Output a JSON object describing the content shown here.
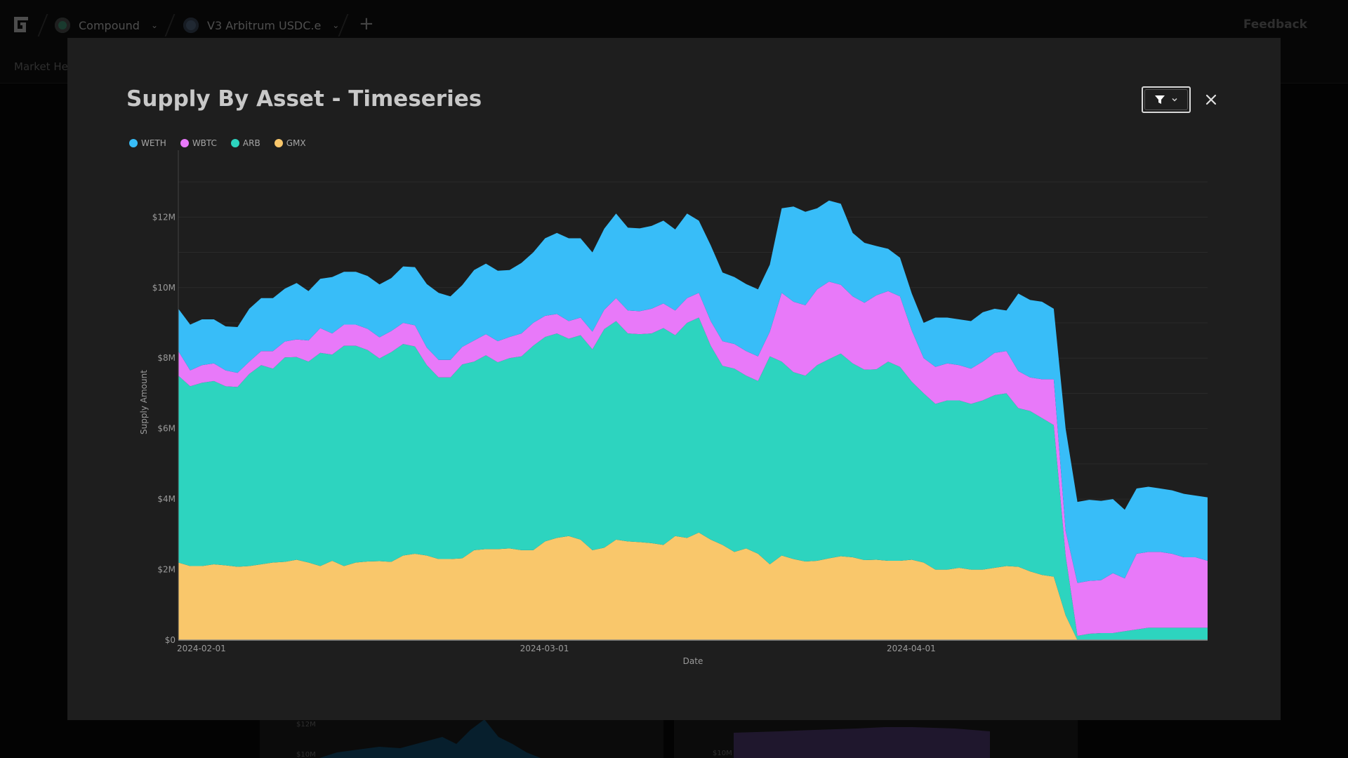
{
  "topnav": {
    "protocol": "Compound",
    "market": "V3 Arbitrum USDC.e",
    "add_symbol": "+",
    "feedback": "Feedback"
  },
  "tabs": {
    "first": "Market Hea"
  },
  "modal": {
    "title": "Supply By Asset - Timeseries"
  },
  "background_cards": {
    "card1_ticks": [
      "$12M",
      "$10M"
    ],
    "card2_ticks": [
      "$10M"
    ]
  },
  "colors": {
    "WETH": "#38bdf8",
    "WBTC": "#e879f9",
    "ARB": "#2dd4bf",
    "GMX": "#f9c76b"
  },
  "chart_data": {
    "type": "area",
    "stacked": true,
    "title": "",
    "xlabel": "Date",
    "ylabel": "Supply Amount",
    "ylim": [
      0,
      13500000
    ],
    "y_ticks": [
      0,
      2000000,
      4000000,
      6000000,
      8000000,
      10000000,
      12000000
    ],
    "y_tick_labels": [
      "$0",
      "$2M",
      "$4M",
      "$6M",
      "$8M",
      "$10M",
      "$12M"
    ],
    "x_start": "2024-02-01",
    "x_end": "2024-04-28",
    "x_ticks": [
      "2024-02-01",
      "2024-03-01",
      "2024-04-01"
    ],
    "grid": true,
    "legend_position": "top-left",
    "x": [
      "2024-02-01",
      "2024-02-02",
      "2024-02-03",
      "2024-02-04",
      "2024-02-05",
      "2024-02-06",
      "2024-02-07",
      "2024-02-08",
      "2024-02-09",
      "2024-02-10",
      "2024-02-11",
      "2024-02-12",
      "2024-02-13",
      "2024-02-14",
      "2024-02-15",
      "2024-02-16",
      "2024-02-17",
      "2024-02-18",
      "2024-02-19",
      "2024-02-20",
      "2024-02-21",
      "2024-02-22",
      "2024-02-23",
      "2024-02-24",
      "2024-02-25",
      "2024-02-26",
      "2024-02-27",
      "2024-02-28",
      "2024-02-29",
      "2024-03-01",
      "2024-03-02",
      "2024-03-03",
      "2024-03-04",
      "2024-03-05",
      "2024-03-06",
      "2024-03-07",
      "2024-03-08",
      "2024-03-09",
      "2024-03-10",
      "2024-03-11",
      "2024-03-12",
      "2024-03-13",
      "2024-03-14",
      "2024-03-15",
      "2024-03-16",
      "2024-03-17",
      "2024-03-18",
      "2024-03-19",
      "2024-03-20",
      "2024-03-21",
      "2024-03-22",
      "2024-03-23",
      "2024-03-24",
      "2024-03-25",
      "2024-03-26",
      "2024-03-27",
      "2024-03-28",
      "2024-03-29",
      "2024-03-30",
      "2024-03-31",
      "2024-04-01",
      "2024-04-02",
      "2024-04-03",
      "2024-04-04",
      "2024-04-05",
      "2024-04-06",
      "2024-04-07",
      "2024-04-08",
      "2024-04-09",
      "2024-04-10",
      "2024-04-11",
      "2024-04-12",
      "2024-04-13",
      "2024-04-14",
      "2024-04-15",
      "2024-04-16",
      "2024-04-17",
      "2024-04-18",
      "2024-04-19",
      "2024-04-20",
      "2024-04-21",
      "2024-04-22",
      "2024-04-23",
      "2024-04-24",
      "2024-04-25",
      "2024-04-26",
      "2024-04-27",
      "2024-04-28"
    ],
    "series": [
      {
        "name": "GMX",
        "values": [
          2200000,
          2100000,
          2100000,
          2150000,
          2120000,
          2080000,
          2100000,
          2150000,
          2200000,
          2220000,
          2280000,
          2200000,
          2100000,
          2250000,
          2100000,
          2200000,
          2230000,
          2240000,
          2220000,
          2400000,
          2450000,
          2400000,
          2300000,
          2300000,
          2320000,
          2550000,
          2580000,
          2580000,
          2600000,
          2550000,
          2550000,
          2800000,
          2900000,
          2950000,
          2850000,
          2550000,
          2620000,
          2850000,
          2800000,
          2780000,
          2750000,
          2700000,
          2950000,
          2900000,
          3050000,
          2850000,
          2700000,
          2500000,
          2600000,
          2450000,
          2150000,
          2400000,
          2300000,
          2230000,
          2250000,
          2320000,
          2380000,
          2350000,
          2270000,
          2280000,
          2250000,
          2250000,
          2280000,
          2200000,
          2000000,
          2000000,
          2050000,
          2000000,
          2000000,
          2050000,
          2100000,
          2080000,
          1950000,
          1850000,
          1800000,
          700000,
          0,
          0,
          0,
          0,
          0,
          0,
          0,
          0,
          0,
          0,
          0,
          0
        ]
      },
      {
        "name": "ARB",
        "values": [
          5300000,
          5100000,
          5200000,
          5200000,
          5080000,
          5100000,
          5450000,
          5650000,
          5500000,
          5800000,
          5750000,
          5700000,
          6050000,
          5850000,
          6250000,
          6150000,
          6000000,
          5750000,
          5950000,
          6000000,
          5880000,
          5400000,
          5150000,
          5150000,
          5500000,
          5350000,
          5500000,
          5300000,
          5400000,
          5500000,
          5800000,
          5800000,
          5800000,
          5600000,
          5800000,
          5700000,
          6200000,
          6200000,
          5900000,
          5900000,
          5950000,
          6150000,
          5700000,
          6100000,
          6100000,
          5500000,
          5080000,
          5200000,
          4900000,
          4900000,
          5900000,
          5500000,
          5300000,
          5270000,
          5550000,
          5650000,
          5750000,
          5500000,
          5400000,
          5400000,
          5650000,
          5500000,
          5050000,
          4800000,
          4700000,
          4800000,
          4750000,
          4700000,
          4800000,
          4900000,
          4900000,
          4500000,
          4550000,
          4450000,
          4300000,
          1700000,
          120000,
          180000,
          200000,
          200000,
          250000,
          300000,
          350000,
          350000,
          350000,
          350000,
          350000,
          350000
        ]
      },
      {
        "name": "WBTC",
        "values": [
          700000,
          450000,
          500000,
          500000,
          450000,
          400000,
          350000,
          400000,
          500000,
          450000,
          500000,
          600000,
          700000,
          600000,
          600000,
          600000,
          600000,
          600000,
          600000,
          600000,
          600000,
          500000,
          500000,
          500000,
          500000,
          600000,
          600000,
          600000,
          600000,
          650000,
          650000,
          600000,
          550000,
          500000,
          500000,
          500000,
          550000,
          650000,
          650000,
          650000,
          700000,
          700000,
          700000,
          700000,
          700000,
          700000,
          700000,
          700000,
          700000,
          700000,
          700000,
          1950000,
          2000000,
          2000000,
          2150000,
          2200000,
          1950000,
          1900000,
          1900000,
          2100000,
          2000000,
          2000000,
          1450000,
          1000000,
          1050000,
          1050000,
          1000000,
          1000000,
          1100000,
          1200000,
          1200000,
          1050000,
          950000,
          1100000,
          1300000,
          700000,
          1500000,
          1500000,
          1500000,
          1700000,
          1500000,
          2150000,
          2150000,
          2150000,
          2100000,
          2000000,
          2000000,
          1900000
        ]
      },
      {
        "name": "WETH",
        "values": [
          1200000,
          1300000,
          1300000,
          1250000,
          1250000,
          1300000,
          1500000,
          1500000,
          1500000,
          1500000,
          1600000,
          1400000,
          1400000,
          1600000,
          1500000,
          1500000,
          1500000,
          1500000,
          1500000,
          1600000,
          1650000,
          1800000,
          1900000,
          1800000,
          1750000,
          2000000,
          2000000,
          2000000,
          1900000,
          2000000,
          2000000,
          2200000,
          2300000,
          2350000,
          2250000,
          2250000,
          2300000,
          2400000,
          2350000,
          2350000,
          2350000,
          2350000,
          2300000,
          2400000,
          2050000,
          2150000,
          1950000,
          1900000,
          1900000,
          1900000,
          1900000,
          2400000,
          2700000,
          2650000,
          2300000,
          2300000,
          2300000,
          1800000,
          1700000,
          1400000,
          1200000,
          1100000,
          1050000,
          1000000,
          1400000,
          1300000,
          1300000,
          1350000,
          1400000,
          1250000,
          1150000,
          2200000,
          2200000,
          2200000,
          2000000,
          2900000,
          2300000,
          2300000,
          2250000,
          2100000,
          1950000,
          1850000,
          1850000,
          1800000,
          1800000,
          1800000,
          1750000,
          1800000
        ]
      }
    ]
  }
}
